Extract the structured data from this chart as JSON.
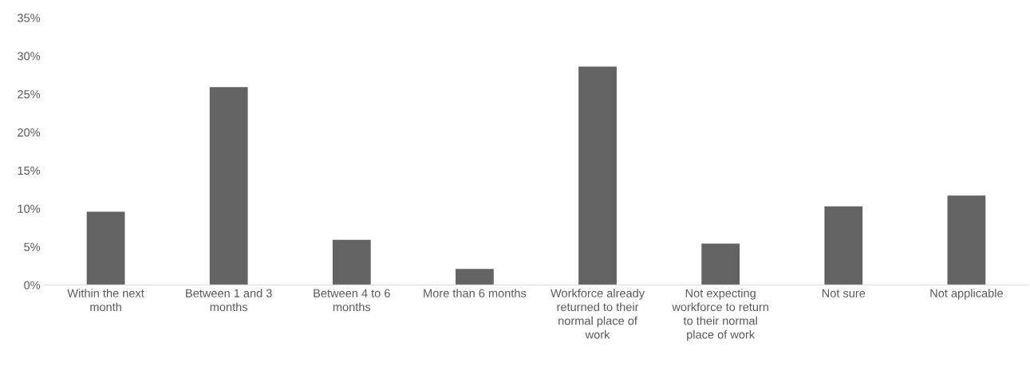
{
  "chart_data": {
    "type": "bar",
    "categories": [
      "Within the next month",
      "Between 1 and 3 months",
      "Between 4 to 6 months",
      "More than 6 months",
      "Workforce already returned to their normal place of work",
      "Not expecting workforce to return to their normal place of work",
      "Not sure",
      "Not applicable"
    ],
    "values": [
      9.6,
      25.9,
      5.9,
      2.1,
      28.6,
      5.4,
      10.3,
      11.7
    ],
    "color": "#636363",
    "ylim": [
      0,
      35
    ],
    "yticks": [
      {
        "value": 0,
        "label": "0%"
      },
      {
        "value": 5,
        "label": "5%"
      },
      {
        "value": 10,
        "label": "10%"
      },
      {
        "value": 15,
        "label": "15%"
      },
      {
        "value": 20,
        "label": "20%"
      },
      {
        "value": 25,
        "label": "25%"
      },
      {
        "value": 30,
        "label": "30%"
      },
      {
        "value": 35,
        "label": "35%"
      }
    ],
    "grid": false
  }
}
